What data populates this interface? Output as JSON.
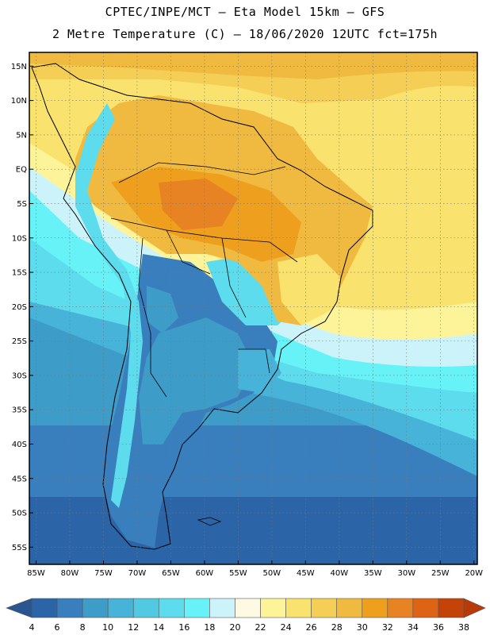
{
  "header": {
    "line1": "CPTEC/INPE/MCT –   Eta Model 15km – GFS",
    "line2": "2 Metre Temperature (C) – 18/06/2020 12UTC fct=175h"
  },
  "map": {
    "region": "South America",
    "lat_labels": [
      "15N",
      "10N",
      "5N",
      "EQ",
      "5S",
      "10S",
      "15S",
      "20S",
      "25S",
      "30S",
      "35S",
      "40S",
      "45S",
      "50S",
      "55S"
    ],
    "lon_labels": [
      "85W",
      "80W",
      "75W",
      "70W",
      "65W",
      "60W",
      "55W",
      "50W",
      "45W",
      "40W",
      "35W",
      "30W",
      "25W",
      "20W"
    ],
    "extent": {
      "lon_min": -86,
      "lon_max": -19.5,
      "lat_min": -57.5,
      "lat_max": 17
    }
  },
  "colorbar": {
    "labels": [
      "4",
      "6",
      "8",
      "10",
      "12",
      "14",
      "16",
      "18",
      "20",
      "22",
      "24",
      "26",
      "28",
      "30",
      "32",
      "34",
      "36",
      "38"
    ],
    "colors": [
      "#2b65a8",
      "#3a7fbd",
      "#3e9cc9",
      "#48b3d8",
      "#52c9e3",
      "#5cdcec",
      "#66f2f7",
      "#cdf3fa",
      "#fdf9e2",
      "#fdf49a",
      "#f9e26e",
      "#f5cf55",
      "#efba3f",
      "#ee9f1d",
      "#e88323",
      "#df6314",
      "#c44308"
    ],
    "end_left_color": "#2a5590",
    "end_right_color": "#b73a08"
  }
}
